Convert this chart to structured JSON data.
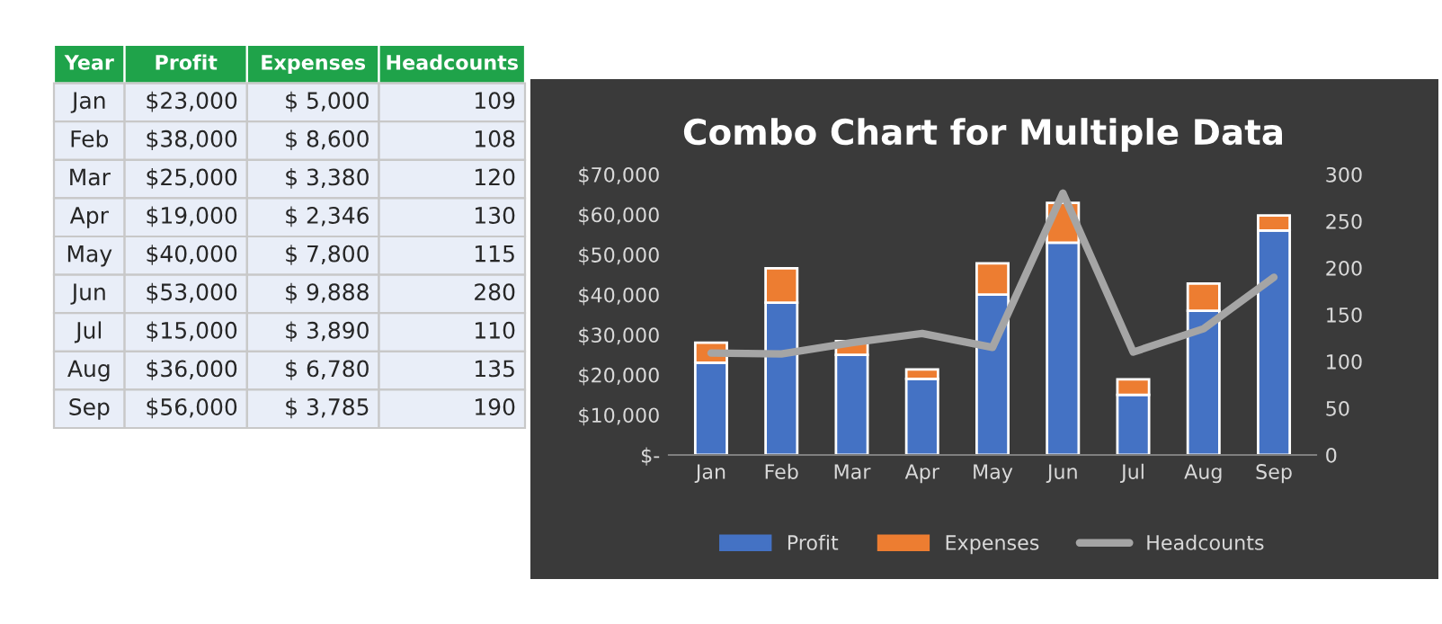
{
  "chart_data": [
    {
      "type": "other",
      "categories": [
        "Year",
        "Profit",
        "Expenses",
        "Headcounts"
      ],
      "annotations": [
        "Jan",
        "$23,000",
        "$ 5,000",
        "109",
        "Feb",
        "$38,000",
        "$ 8,600",
        "108",
        "Mar",
        "$25,000",
        "$ 3,380",
        "120",
        "Apr",
        "$19,000",
        "$ 2,346",
        "130",
        "May",
        "$40,000",
        "$ 7,800",
        "115",
        "Jun",
        "$53,000",
        "$ 9,888",
        "280",
        "Jul",
        "$15,000",
        "$ 3,890",
        "110",
        "Aug",
        "$36,000",
        "$ 6,780",
        "135",
        "Sep",
        "$56,000",
        "$ 3,785",
        "190"
      ]
    },
    {
      "type": "bar",
      "title": "Combo Chart for Multiple Data",
      "stacked": true,
      "categories": [
        "Jan",
        "Feb",
        "Mar",
        "Apr",
        "May",
        "Jun",
        "Jul",
        "Aug",
        "Sep"
      ],
      "series": [
        {
          "name": "Profit",
          "color": "#4472c4",
          "values": [
            23000,
            38000,
            25000,
            19000,
            40000,
            53000,
            15000,
            36000,
            56000
          ]
        },
        {
          "name": "Expenses",
          "color": "#ed7d31",
          "values": [
            5000,
            8600,
            3380,
            2346,
            7800,
            9888,
            3890,
            6780,
            3785
          ]
        },
        {
          "name": "Headcounts",
          "type": "line",
          "axis": "y2",
          "color": "#a5a5a5",
          "values": [
            109,
            108,
            120,
            130,
            115,
            280,
            110,
            135,
            190
          ]
        }
      ],
      "ylim": [
        0,
        70000
      ],
      "yticks": [
        {
          "value": 0,
          "label": "$-"
        },
        {
          "value": 10000,
          "label": "$10,000"
        },
        {
          "value": 20000,
          "label": "$20,000"
        },
        {
          "value": 30000,
          "label": "$30,000"
        },
        {
          "value": 40000,
          "label": "$40,000"
        },
        {
          "value": 50000,
          "label": "$50,000"
        },
        {
          "value": 60000,
          "label": "$60,000"
        },
        {
          "value": 70000,
          "label": "$70,000"
        }
      ],
      "y2lim": [
        0,
        300
      ],
      "y2ticks": [
        0,
        50,
        100,
        150,
        200,
        250,
        300
      ],
      "legend": "bottom",
      "grid": false,
      "marker": "none",
      "line_style": "solid"
    }
  ]
}
